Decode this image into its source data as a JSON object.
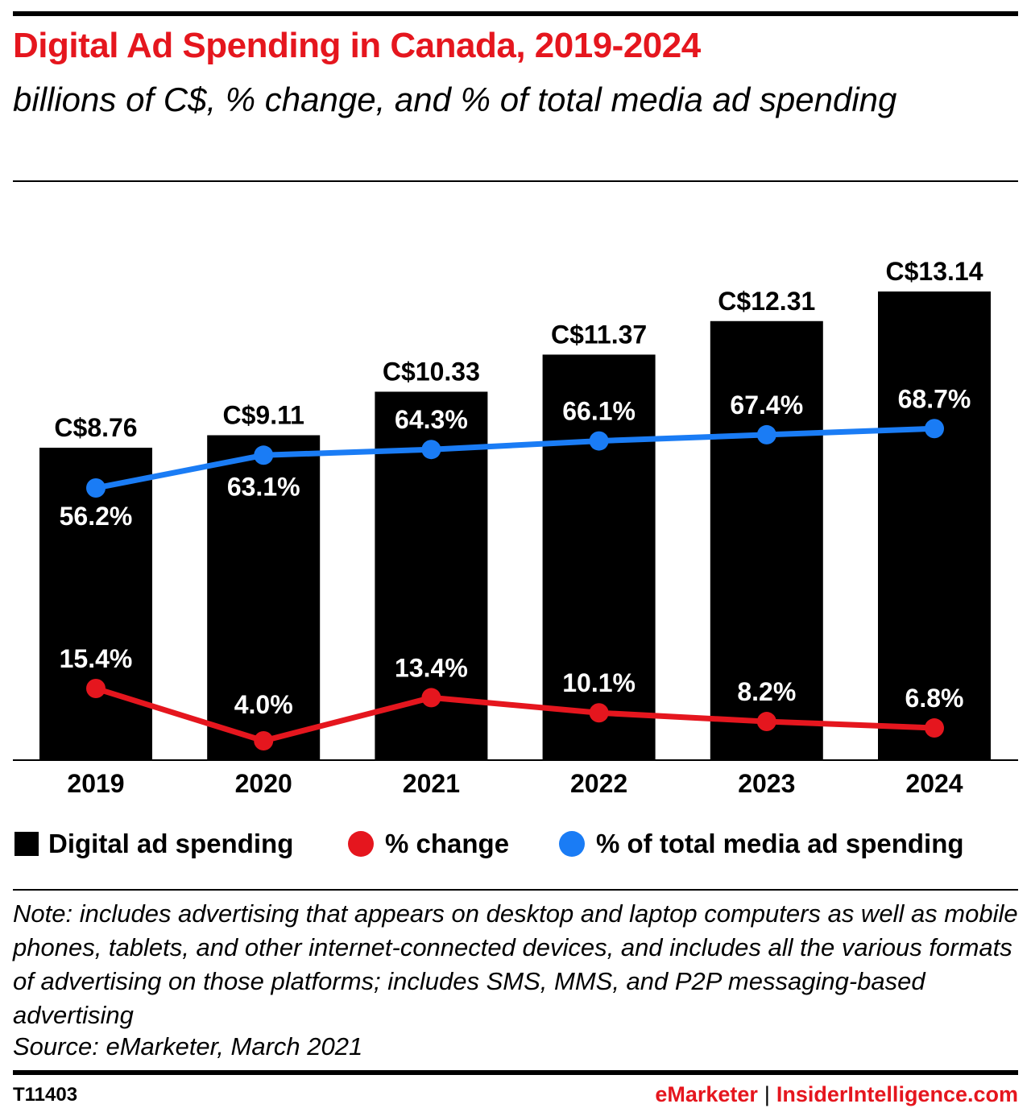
{
  "header": {
    "title": "Digital Ad Spending in Canada, 2019-2024",
    "subtitle": "billions of C$, % change, and % of total media ad spending"
  },
  "colors": {
    "bar": "#000000",
    "change_line": "#e5161e",
    "share_line": "#1a7cf5",
    "title": "#e5161e"
  },
  "chart_data": {
    "type": "bar",
    "categories": [
      "2019",
      "2020",
      "2021",
      "2022",
      "2023",
      "2024"
    ],
    "series": [
      {
        "name": "Digital ad spending",
        "type": "bar",
        "values": [
          8.76,
          9.11,
          10.33,
          11.37,
          12.31,
          13.14
        ],
        "labels": [
          "C$8.76",
          "C$9.11",
          "C$10.33",
          "C$11.37",
          "C$12.31",
          "C$13.14"
        ]
      },
      {
        "name": "% change",
        "type": "line",
        "values": [
          15.4,
          4.0,
          13.4,
          10.1,
          8.2,
          6.8
        ],
        "labels": [
          "15.4%",
          "4.0%",
          "13.4%",
          "10.1%",
          "8.2%",
          "6.8%"
        ]
      },
      {
        "name": "% of total media ad spending",
        "type": "line",
        "values": [
          56.2,
          63.1,
          64.3,
          66.1,
          67.4,
          68.7
        ],
        "labels": [
          "56.2%",
          "63.1%",
          "64.3%",
          "66.1%",
          "67.4%",
          "68.7%"
        ]
      }
    ],
    "ylim": [
      0,
      15
    ],
    "grid": false,
    "legend_position": "bottom"
  },
  "legend": {
    "items": [
      "Digital ad spending",
      "% change",
      "% of total media ad spending"
    ]
  },
  "footer": {
    "note": "Note: includes advertising that appears on desktop and laptop computers as well as mobile phones, tablets, and other internet-connected devices, and includes all the various formats of advertising on those platforms; includes SMS, MMS, and P2P messaging-based advertising",
    "source": "Source: eMarketer, March 2021",
    "chart_id": "T11403",
    "brand_left": "eMarketer",
    "brand_sep": "|",
    "brand_right": "InsiderIntelligence.com"
  }
}
